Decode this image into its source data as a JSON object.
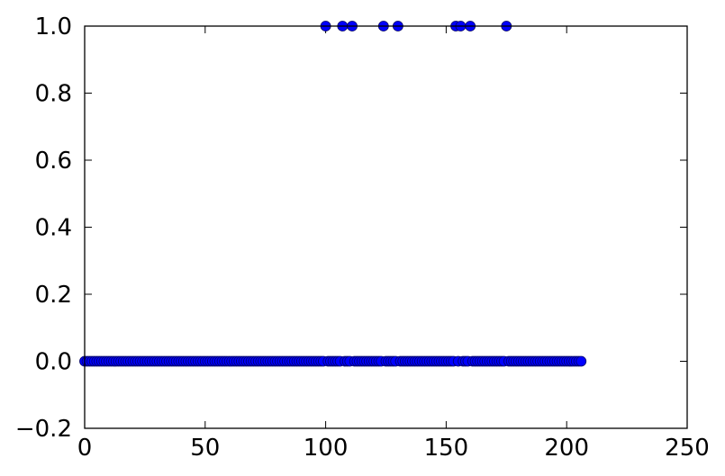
{
  "chart_data": {
    "type": "scatter",
    "title": "",
    "xlabel": "",
    "ylabel": "",
    "xlim": [
      0,
      250
    ],
    "ylim": [
      -0.2,
      1.0
    ],
    "x_ticks": [
      0,
      50,
      100,
      150,
      200,
      250
    ],
    "y_ticks": [
      -0.2,
      0.0,
      0.2,
      0.4,
      0.6,
      0.8,
      1.0
    ],
    "x_tick_labels": [
      "0",
      "50",
      "100",
      "150",
      "200",
      "250"
    ],
    "y_tick_labels": [
      "−0.2",
      "0.0",
      "0.2",
      "0.4",
      "0.6",
      "0.8",
      "1.0"
    ],
    "grid": false,
    "marker_color": "#0000ff",
    "series": [
      {
        "marker": "circle",
        "ones_x": [
          100,
          107,
          111,
          124,
          130,
          154,
          156,
          160,
          175
        ],
        "zeros_x_range": [
          0,
          206
        ],
        "x_step": 1
      }
    ]
  }
}
